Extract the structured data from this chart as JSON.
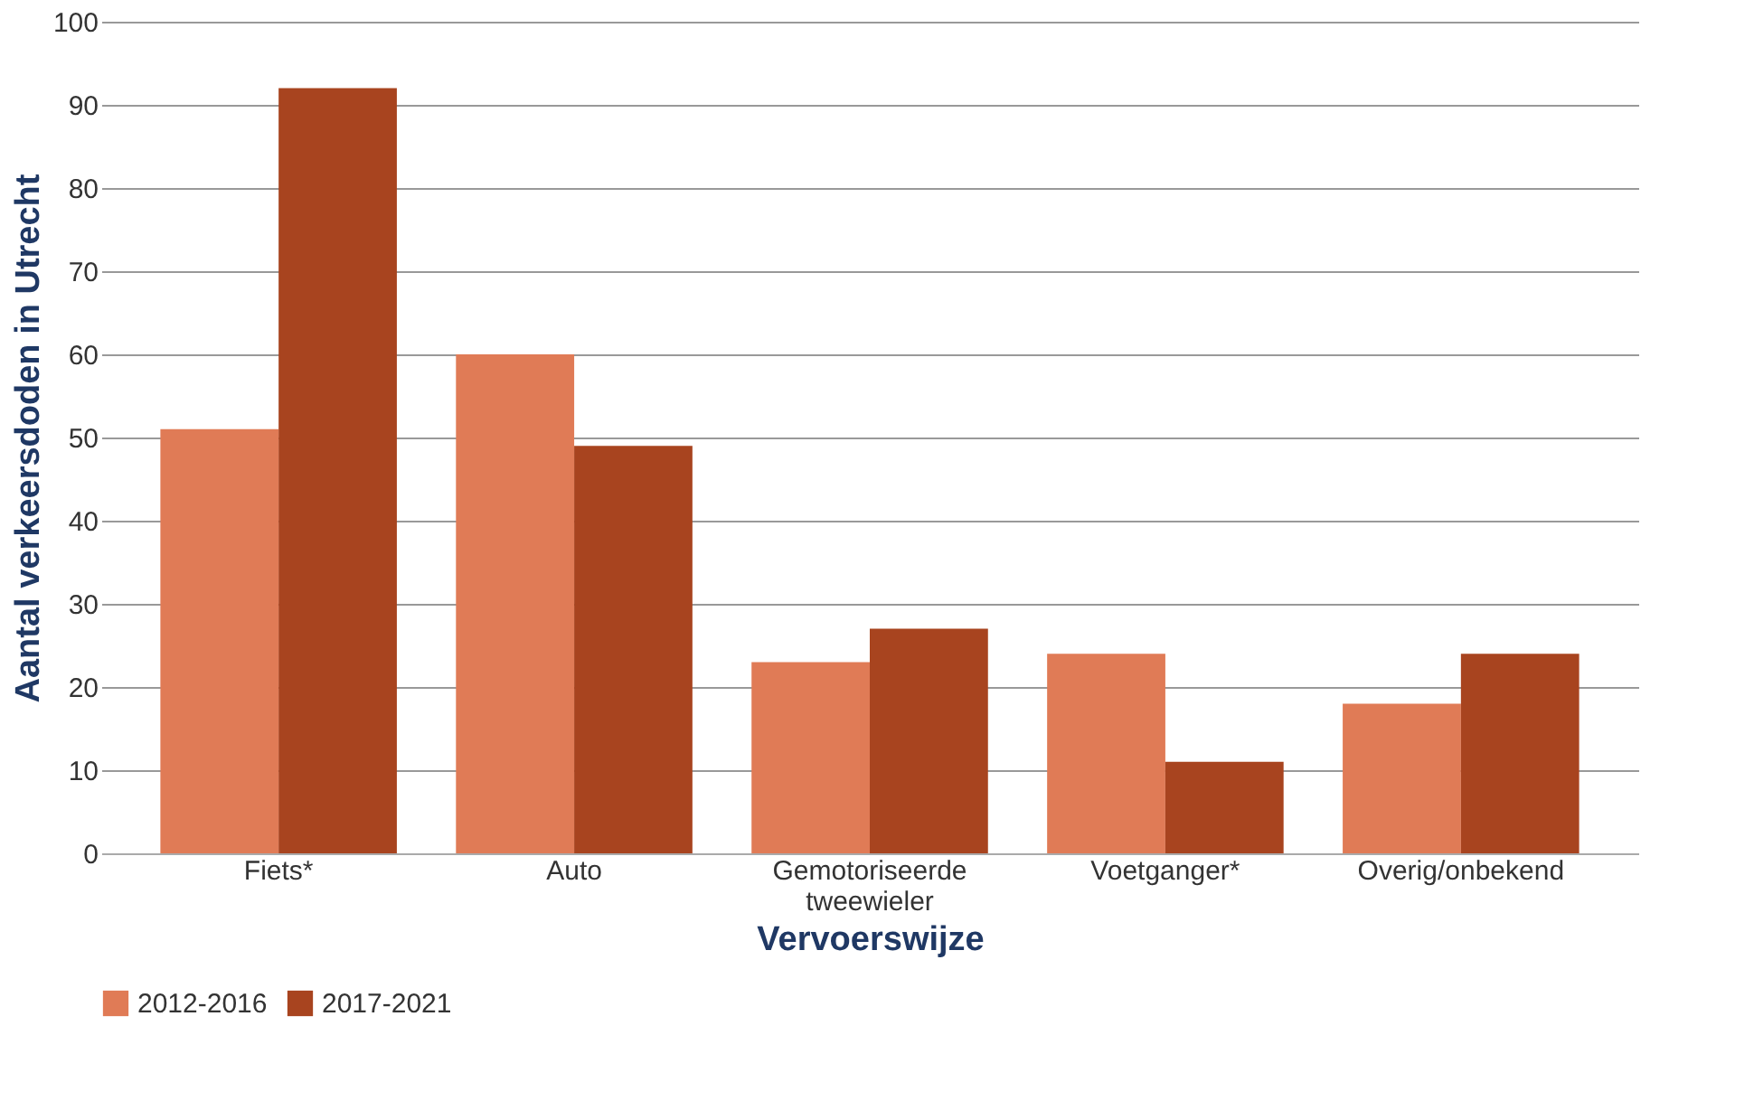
{
  "chart_data": {
    "type": "bar",
    "xlabel": "Vervoerswijze",
    "ylabel": "Aantal verkeersdoden in Utrecht",
    "categories": [
      "Fiets*",
      "Auto",
      "Gemotoriseerde tweewieler",
      "Voetganger*",
      "Overig/onbekend"
    ],
    "series": [
      {
        "name": "2012-2016",
        "color": "#e07b56",
        "values": [
          51,
          60,
          23,
          24,
          18
        ]
      },
      {
        "name": "2017-2021",
        "color": "#a8441f",
        "values": [
          92,
          49,
          27,
          11,
          24
        ]
      }
    ],
    "ylim": [
      0,
      100
    ],
    "yticks": [
      0,
      10,
      20,
      30,
      40,
      50,
      60,
      70,
      80,
      90,
      100
    ],
    "grid": "y",
    "legend": "bottom left"
  }
}
